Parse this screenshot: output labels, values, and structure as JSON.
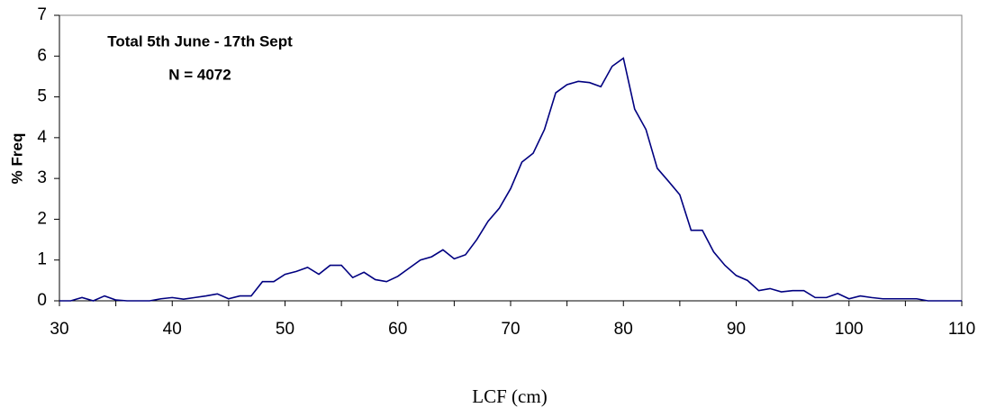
{
  "chart_data": {
    "type": "line",
    "annotations": [
      "Total 5th June - 17th Sept",
      "N = 4072"
    ],
    "x_label": "LCF (cm)",
    "y_label": "% Freq",
    "x": [
      30,
      31,
      32,
      33,
      34,
      35,
      36,
      37,
      38,
      39,
      40,
      41,
      42,
      43,
      44,
      45,
      46,
      47,
      48,
      49,
      50,
      51,
      52,
      53,
      54,
      55,
      56,
      57,
      58,
      59,
      60,
      61,
      62,
      63,
      64,
      65,
      66,
      67,
      68,
      69,
      70,
      71,
      72,
      73,
      74,
      75,
      76,
      77,
      78,
      79,
      80,
      81,
      82,
      83,
      84,
      85,
      86,
      87,
      88,
      89,
      90,
      91,
      92,
      93,
      94,
      95,
      96,
      97,
      98,
      99,
      100,
      101,
      102,
      103,
      104,
      105,
      106,
      107,
      108,
      109,
      110
    ],
    "values": [
      0,
      0,
      0.08,
      0,
      0.12,
      0.02,
      0,
      0,
      0,
      0.05,
      0.08,
      0.04,
      0.08,
      0.12,
      0.17,
      0.05,
      0.12,
      0.12,
      0.47,
      0.47,
      0.65,
      0.72,
      0.82,
      0.65,
      0.87,
      0.87,
      0.57,
      0.7,
      0.52,
      0.47,
      0.6,
      0.8,
      1.0,
      1.08,
      1.25,
      1.03,
      1.13,
      1.5,
      1.95,
      2.27,
      2.75,
      3.4,
      3.62,
      4.2,
      5.1,
      5.3,
      5.38,
      5.35,
      5.25,
      5.75,
      5.95,
      4.7,
      4.2,
      3.25,
      2.93,
      2.6,
      1.73,
      1.73,
      1.2,
      0.87,
      0.62,
      0.5,
      0.25,
      0.3,
      0.22,
      0.25,
      0.25,
      0.08,
      0.08,
      0.18,
      0.05,
      0.12,
      0.08,
      0.05,
      0.05,
      0.05,
      0.05,
      0,
      0,
      0,
      0
    ],
    "color": "#000080",
    "xlim": [
      30,
      110
    ],
    "xticks": [
      30,
      40,
      50,
      60,
      70,
      80,
      90,
      100,
      110
    ],
    "ylim": [
      0,
      7
    ],
    "yticks": [
      0,
      1,
      2,
      3,
      4,
      5,
      6,
      7
    ],
    "grid": false
  }
}
